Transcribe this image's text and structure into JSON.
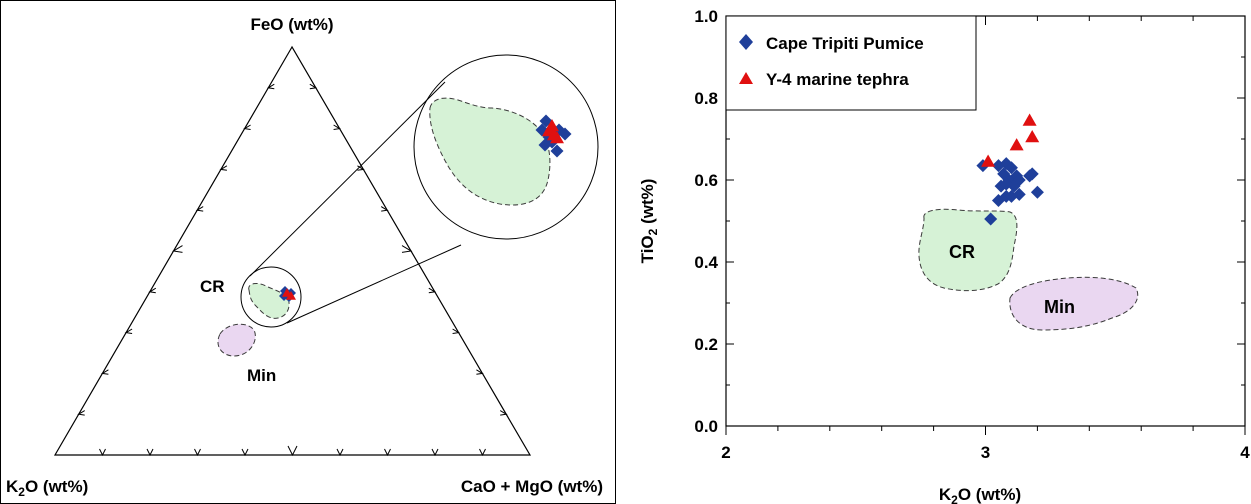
{
  "colors": {
    "cape_tripiti": "#1f3f9a",
    "y4_tephra": "#e01010",
    "cr_fill": "#d6f2d6",
    "min_fill": "#ead7f1",
    "axis": "#000000"
  },
  "ternary": {
    "apex_top": "FeO (wt%)",
    "apex_left_sub_pre": "K",
    "apex_left_sub": "2",
    "apex_left_sub_post": "O (wt%)",
    "apex_right": "CaO + MgO (wt%)",
    "field_cr": "CR",
    "field_min": "Min",
    "inset": "magnified view of the sample cluster"
  },
  "chart_data": [
    {
      "type": "scatter",
      "xlabel_pre": "K",
      "xlabel_sub": "2",
      "xlabel_post": "O (wt%)",
      "ylabel_pre": "TiO",
      "ylabel_sub": "2",
      "ylabel_post": " (wt%)",
      "xlim": [
        2,
        4
      ],
      "ylim": [
        0,
        1
      ],
      "x_ticks": [
        "2",
        "3",
        "4"
      ],
      "y_ticks": [
        "0.0",
        "0.2",
        "0.4",
        "0.6",
        "0.8",
        "1.0"
      ],
      "legend_position": "top-left",
      "series": [
        {
          "name": "Cape Tripiti Pumice",
          "marker": "diamond",
          "x": [
            3.02,
            2.99,
            3.05,
            3.08,
            3.1,
            3.12,
            3.07,
            3.09,
            3.13,
            3.06,
            3.08,
            3.11,
            3.18,
            3.17,
            3.08,
            3.2,
            3.13,
            3.1,
            3.05
          ],
          "y": [
            0.505,
            0.635,
            0.635,
            0.64,
            0.63,
            0.61,
            0.615,
            0.6,
            0.6,
            0.585,
            0.59,
            0.585,
            0.615,
            0.61,
            0.56,
            0.57,
            0.565,
            0.56,
            0.55
          ]
        },
        {
          "name": "Y-4 marine tephra",
          "marker": "triangle",
          "x": [
            3.01,
            3.17,
            3.18,
            3.12
          ],
          "y": [
            0.645,
            0.745,
            0.705,
            0.685
          ]
        }
      ],
      "fields": [
        {
          "name": "CR",
          "k2o_range": [
            2.75,
            3.12
          ],
          "tio2_range": [
            0.32,
            0.52
          ]
        },
        {
          "name": "Min",
          "k2o_range": [
            2.88,
            3.58
          ],
          "tio2_range": [
            0.24,
            0.36
          ]
        }
      ]
    }
  ]
}
